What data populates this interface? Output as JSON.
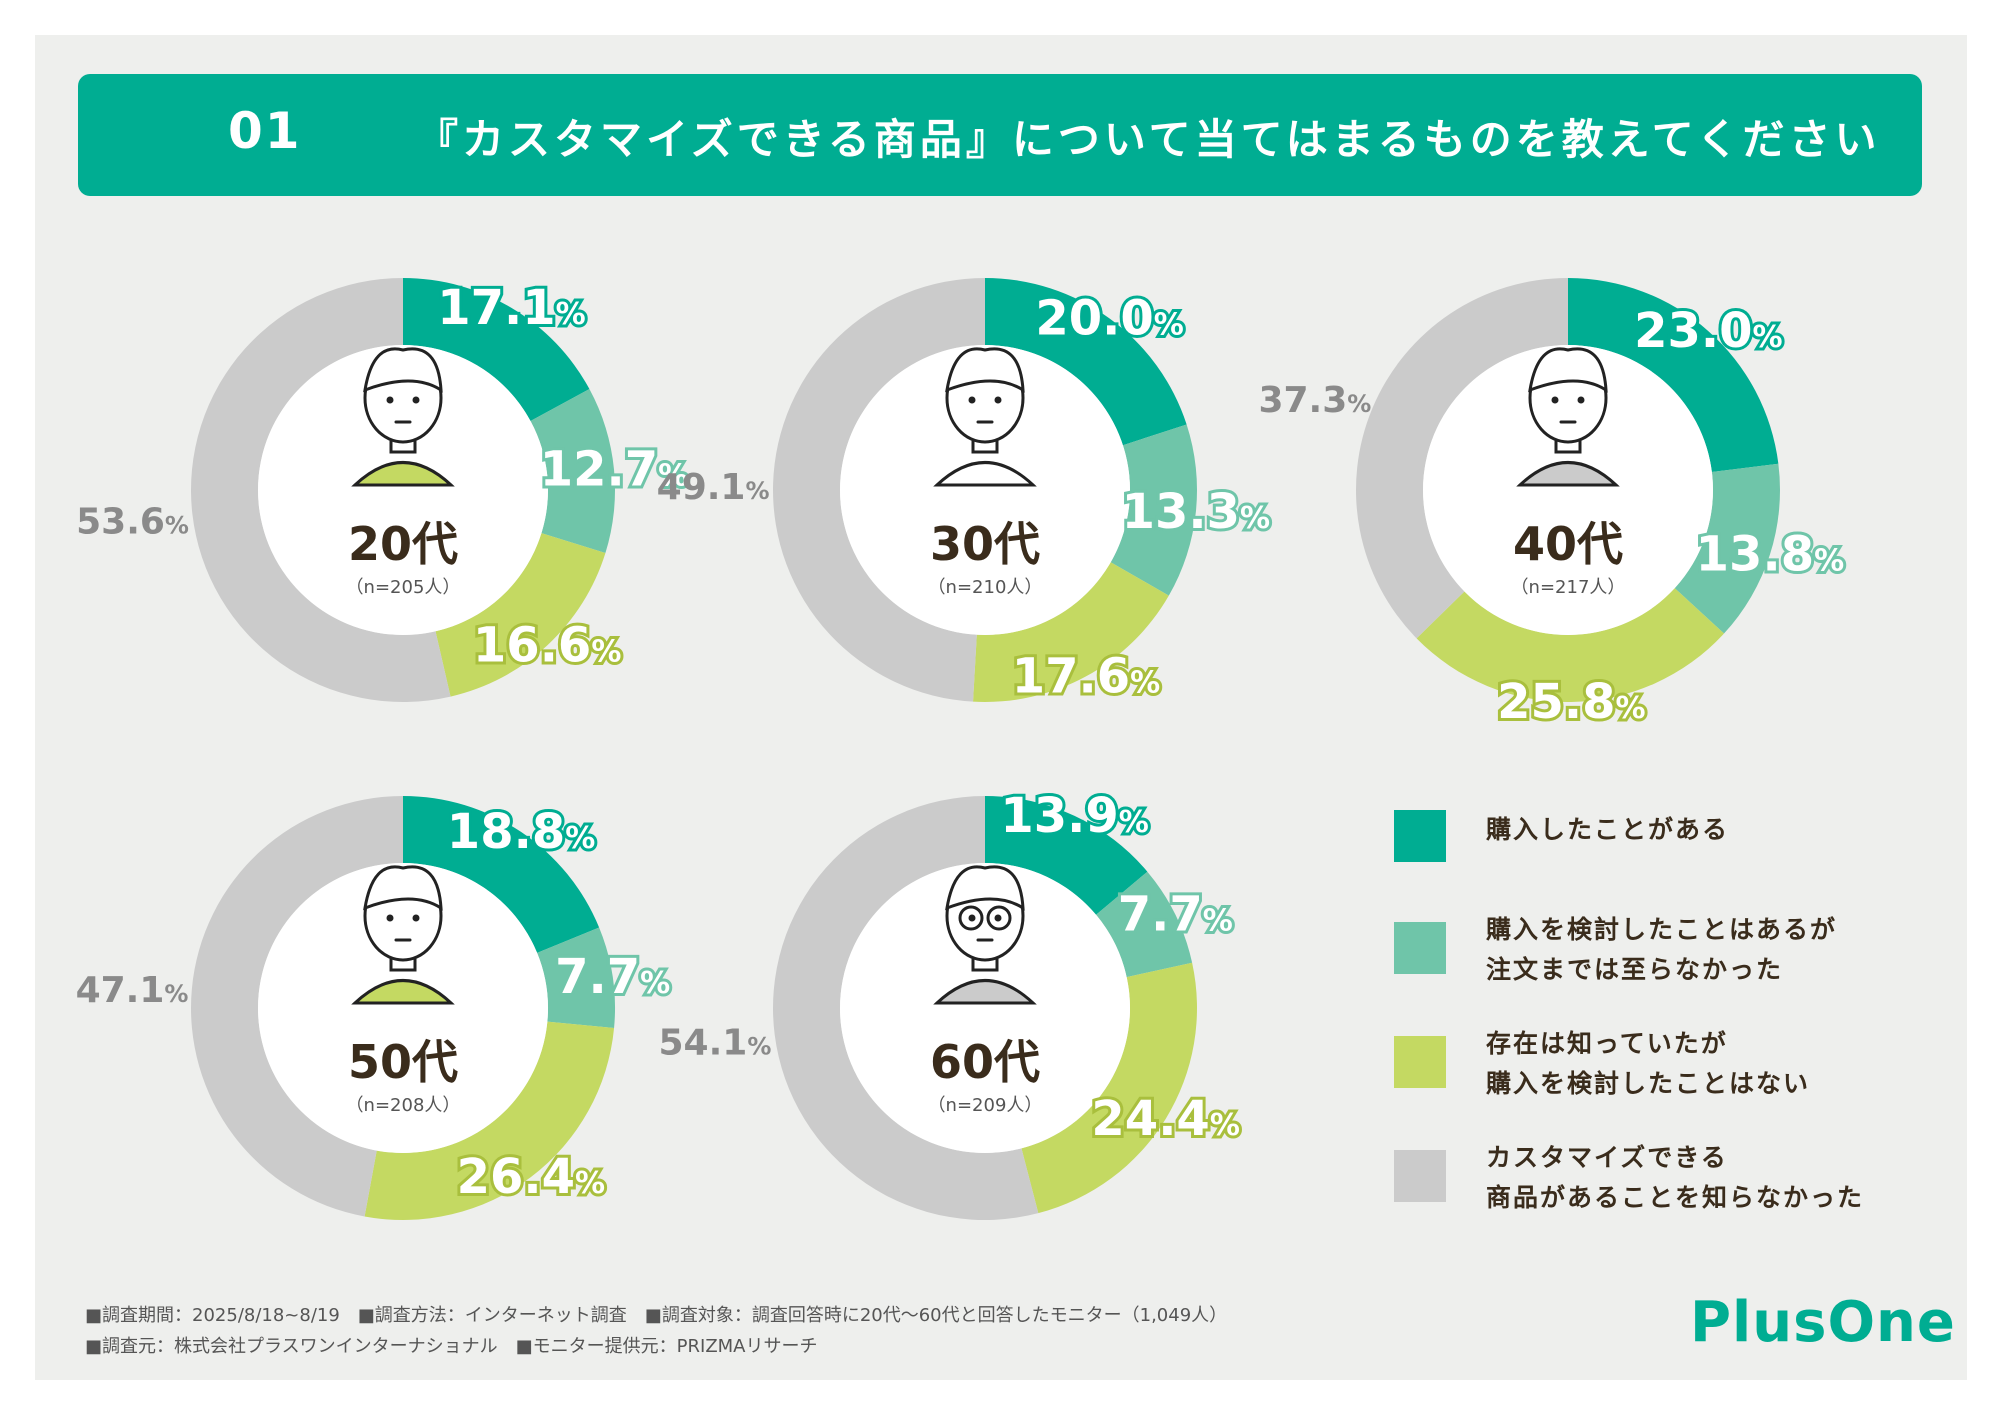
{
  "header": {
    "number": "01",
    "question": "『カスタマイズできる商品』について当てはまるものを教えてください"
  },
  "colors": {
    "purchased": "#00ad92",
    "considered": "#6fc5a9",
    "aware": "#c4d962",
    "unaware": "#cbcbcb",
    "brand": "#00ad92"
  },
  "chart_data": [
    {
      "type": "donut",
      "title": "20代",
      "n": "（n=205人）",
      "categories": [
        "購入したことがある",
        "購入を検討したことはあるが注文までは至らなかった",
        "存在は知っていたが購入を検討したことはない",
        "カスタマイズできる商品があることを知らなかった"
      ],
      "values": [
        17.1,
        12.7,
        16.6,
        53.6
      ],
      "labels": [
        "17.1",
        "12.7",
        "16.6",
        "53.6"
      ]
    },
    {
      "type": "donut",
      "title": "30代",
      "n": "（n=210人）",
      "categories": [
        "購入したことがある",
        "購入を検討したことはあるが注文までは至らなかった",
        "存在は知っていたが購入を検討したことはない",
        "カスタマイズできる商品があることを知らなかった"
      ],
      "values": [
        20.0,
        13.3,
        17.6,
        49.1
      ],
      "labels": [
        "20.0",
        "13.3",
        "17.6",
        "49.1"
      ]
    },
    {
      "type": "donut",
      "title": "40代",
      "n": "（n=217人）",
      "categories": [
        "購入したことがある",
        "購入を検討したことはあるが注文までは至らなかった",
        "存在は知っていたが購入を検討したことはない",
        "カスタマイズできる商品があることを知らなかった"
      ],
      "values": [
        23.0,
        13.8,
        25.8,
        37.3
      ],
      "labels": [
        "23.0",
        "13.8",
        "25.8",
        "37.3"
      ]
    },
    {
      "type": "donut",
      "title": "50代",
      "n": "（n=208人）",
      "categories": [
        "購入したことがある",
        "購入を検討したことはあるが注文までは至らなかった",
        "存在は知っていたが購入を検討したことはない",
        "カスタマイズできる商品があることを知らなかった"
      ],
      "values": [
        18.8,
        7.7,
        26.4,
        47.1
      ],
      "labels": [
        "18.8",
        "7.7",
        "26.4",
        "47.1"
      ]
    },
    {
      "type": "donut",
      "title": "60代",
      "n": "（n=209人）",
      "categories": [
        "購入したことがある",
        "購入を検討したことはあるが注文までは至らなかった",
        "存在は知っていたが購入を検討したことはない",
        "カスタマイズできる商品があることを知らなかった"
      ],
      "values": [
        13.9,
        7.7,
        24.4,
        54.1
      ],
      "labels": [
        "13.9",
        "7.7",
        "24.4",
        "54.1"
      ]
    }
  ],
  "percent_sign": "%",
  "legend": [
    {
      "lines": [
        "購入したことがある"
      ]
    },
    {
      "lines": [
        "購入を検討したことはあるが",
        "注文までは至らなかった"
      ]
    },
    {
      "lines": [
        "存在は知っていたが",
        "購入を検討したことはない"
      ]
    },
    {
      "lines": [
        "カスタマイズできる",
        "商品があることを知らなかった"
      ]
    }
  ],
  "footer": {
    "line1": "■調査期間：2025/8/18~8/19　■調査方法：インターネット調査　■調査対象：調査回答時に20代〜60代と回答したモニター（1,049人）",
    "line2": "■調査元：株式会社プラスワンインターナショナル　■モニター提供元：PRIZMAリサーチ"
  },
  "logo": "PlusOne"
}
